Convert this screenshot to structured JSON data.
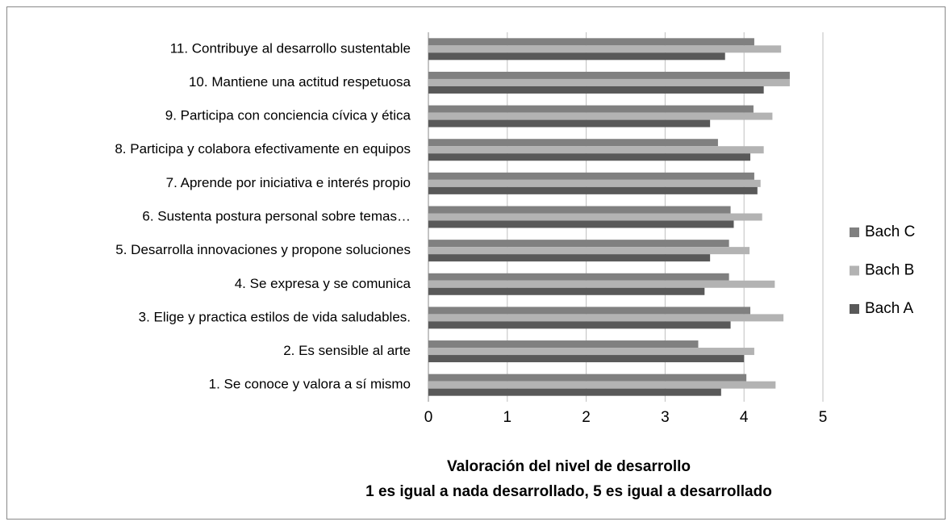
{
  "chart_data": {
    "type": "barh",
    "categories": [
      "1. Se conoce y valora a sí mismo",
      "2. Es sensible al arte",
      "3. Elige y practica estilos de vida saludables.",
      "4. Se expresa y se comunica",
      "5. Desarrolla innovaciones y propone soluciones",
      "6. Sustenta postura personal sobre temas…",
      "7. Aprende por iniciativa e interés propio",
      "8. Participa y colabora efectivamente en equipos",
      "9. Participa con conciencia cívica y ética",
      "10. Mantiene una actitud respetuosa",
      "11. Contribuye al desarrollo sustentable"
    ],
    "series": [
      {
        "name": "Bach C",
        "color": "#808080",
        "values": [
          4.03,
          3.42,
          4.08,
          3.81,
          3.81,
          3.83,
          4.13,
          3.67,
          4.12,
          4.58,
          4.13
        ]
      },
      {
        "name": "Bach B",
        "color": "#b3b3b3",
        "values": [
          4.4,
          4.13,
          4.5,
          4.39,
          4.07,
          4.23,
          4.21,
          4.25,
          4.36,
          4.58,
          4.47
        ]
      },
      {
        "name": "Bach A",
        "color": "#595959",
        "values": [
          3.71,
          4.0,
          3.83,
          3.5,
          3.57,
          3.87,
          4.17,
          4.08,
          3.57,
          4.25,
          3.76
        ]
      }
    ],
    "xlabel": [
      "Valoración del nivel de desarrollo",
      "1 es igual a nada desarrollado, 5 es igual a desarrollado"
    ],
    "xlim": [
      0,
      5
    ],
    "xticks": [
      0,
      1,
      2,
      3,
      4,
      5
    ],
    "grid": true,
    "legend": "right"
  }
}
